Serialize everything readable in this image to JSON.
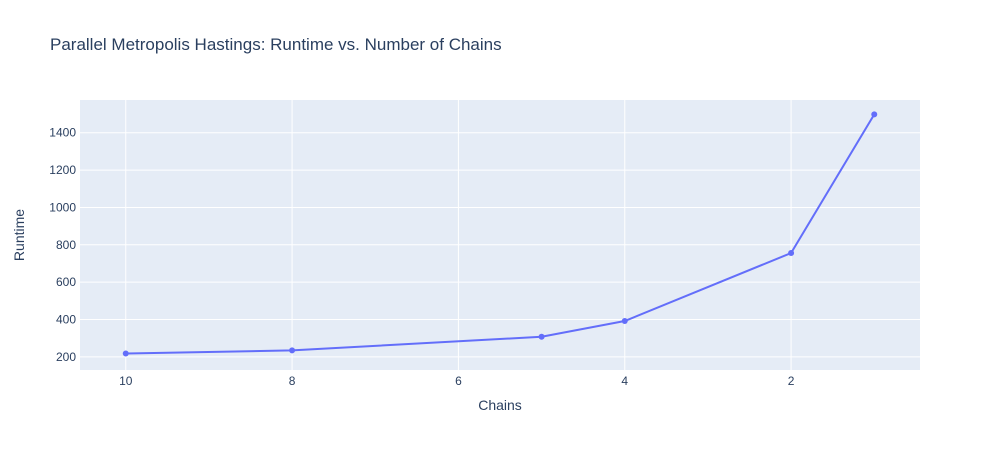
{
  "chart_data": {
    "type": "line",
    "title": "Parallel Metropolis Hastings: Runtime vs. Number of Chains",
    "xlabel": "Chains",
    "ylabel": "Runtime",
    "x_reversed": true,
    "xlim": [
      10.55,
      0.45
    ],
    "ylim": [
      130,
      1575
    ],
    "x_ticks": [
      10,
      8,
      6,
      4,
      2
    ],
    "y_ticks": [
      200,
      400,
      600,
      800,
      1000,
      1200,
      1400
    ],
    "grid": true,
    "legend": "none",
    "series": [
      {
        "x": [
          10,
          8,
          5,
          4,
          2,
          1
        ],
        "y": [
          218,
          235,
          308,
          392,
          756,
          1498
        ],
        "color": "#636efa",
        "mode": "lines+markers"
      }
    ],
    "colors": {
      "plot_bg": "#e5ecf6",
      "grid": "#ffffff",
      "text": "#2a3f5f"
    }
  }
}
